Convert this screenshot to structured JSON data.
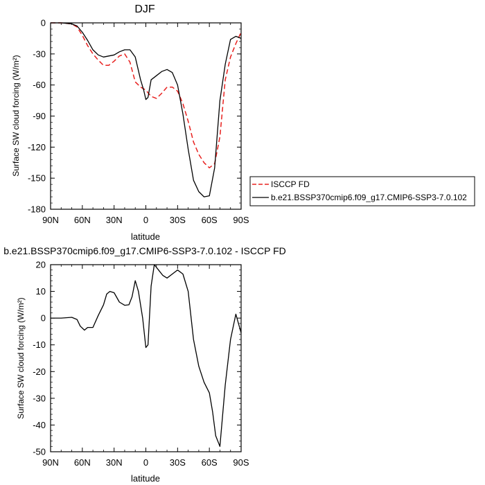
{
  "chart_data": [
    {
      "type": "line",
      "title": "DJF",
      "xlabel": "latitude",
      "ylabel": "Surface SW cloud forcing (W/m²)",
      "xlim": [
        90,
        -90
      ],
      "ylim": [
        -180,
        0
      ],
      "xticks": [
        90,
        60,
        30,
        0,
        -30,
        -60,
        -90
      ],
      "xtick_labels": [
        "90N",
        "60N",
        "30N",
        "0",
        "30S",
        "60S",
        "90S"
      ],
      "yticks": [
        0,
        -30,
        -60,
        -90,
        -120,
        -150,
        -180
      ],
      "ytick_labels": [
        "0",
        "-30",
        "-60",
        "-90",
        "-120",
        "-150",
        "-180"
      ],
      "legend_position": "right",
      "series": [
        {
          "name": "ISCCP FD",
          "color": "#e8201e",
          "dash": "dashed",
          "x": [
            90,
            80,
            70,
            65,
            60,
            55,
            50,
            45,
            40,
            35,
            30,
            25,
            20,
            15,
            10,
            5,
            0,
            -5,
            -10,
            -15,
            -20,
            -25,
            -30,
            -35,
            -40,
            -45,
            -50,
            -55,
            -60,
            -65,
            -70,
            -75,
            -80,
            -85,
            -90
          ],
          "y": [
            0,
            0,
            -1,
            -4,
            -12,
            -22,
            -30,
            -36,
            -41,
            -41,
            -37,
            -32,
            -30,
            -38,
            -57,
            -62,
            -65,
            -71,
            -73,
            -68,
            -62,
            -62,
            -66,
            -78,
            -95,
            -115,
            -127,
            -135,
            -140,
            -136,
            -110,
            -55,
            -33,
            -20,
            -9
          ]
        },
        {
          "name": "b.e21.BSSP370cmip6.f09_g17.CMIP6-SSP3-7.0.102",
          "color": "#000000",
          "dash": "solid",
          "x": [
            90,
            80,
            70,
            65,
            60,
            55,
            50,
            45,
            40,
            35,
            30,
            25,
            20,
            15,
            10,
            5,
            2,
            0,
            -2,
            -5,
            -10,
            -15,
            -20,
            -25,
            -30,
            -35,
            -40,
            -45,
            -50,
            -55,
            -60,
            -65,
            -70,
            -75,
            -80,
            -85,
            -90
          ],
          "y": [
            0,
            0,
            -1,
            -3,
            -9,
            -17,
            -26,
            -31,
            -33,
            -32,
            -31,
            -28,
            -26,
            -26,
            -33,
            -55,
            -65,
            -74,
            -72,
            -55,
            -51,
            -47,
            -45,
            -48,
            -60,
            -88,
            -122,
            -152,
            -163,
            -168,
            -167,
            -140,
            -75,
            -40,
            -16,
            -13,
            -15
          ]
        }
      ]
    },
    {
      "type": "line",
      "title": "b.e21.BSSP370cmip6.f09_g17.CMIP6-SSP3-7.0.102 - ISCCP FD",
      "xlabel": "latitude",
      "ylabel": "Surface SW cloud forcing (W/m²)",
      "xlim": [
        90,
        -90
      ],
      "ylim": [
        -50,
        20
      ],
      "xticks": [
        90,
        60,
        30,
        0,
        -30,
        -60,
        -90
      ],
      "xtick_labels": [
        "90N",
        "60N",
        "30N",
        "0",
        "30S",
        "60S",
        "90S"
      ],
      "yticks": [
        20,
        10,
        0,
        -10,
        -20,
        -30,
        -40,
        -50
      ],
      "ytick_labels": [
        "20",
        "10",
        "0",
        "-10",
        "-20",
        "-30",
        "-40",
        "-50"
      ],
      "series": [
        {
          "color": "#000000",
          "dash": "solid",
          "x": [
            90,
            80,
            70,
            65,
            62,
            58,
            55,
            50,
            45,
            40,
            37,
            34,
            30,
            25,
            20,
            16,
            13,
            10,
            7,
            3,
            0,
            -2,
            -5,
            -8,
            -12,
            -16,
            -20,
            -25,
            -30,
            -35,
            -40,
            -45,
            -50,
            -55,
            -60,
            -63,
            -66,
            -70,
            -75,
            -80,
            -85,
            -90
          ],
          "y": [
            0,
            0,
            0.3,
            -0.5,
            -3,
            -4.5,
            -3.5,
            -3.5,
            1,
            5,
            9,
            10,
            9.5,
            6,
            4.8,
            5,
            8,
            14,
            10,
            0,
            -11,
            -10,
            12,
            20,
            18,
            16,
            15,
            16.5,
            18,
            16.5,
            10,
            -8,
            -18,
            -24,
            -28,
            -35,
            -44,
            -48,
            -25,
            -8,
            1.5,
            -5.5
          ]
        }
      ]
    }
  ]
}
